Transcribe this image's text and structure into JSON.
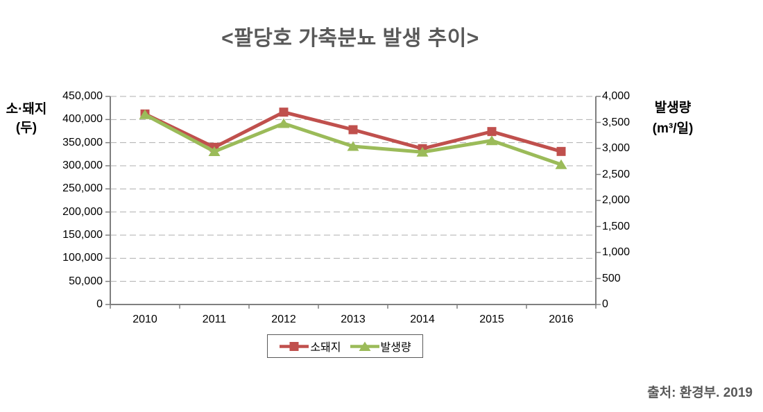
{
  "source": "출처: 환경부. 2019",
  "left_axis": {
    "title": [
      "소·돼지",
      "(두)"
    ],
    "ticks": [
      "450,000",
      "400,000",
      "350,000",
      "300,000",
      "250,000",
      "200,000",
      "150,000",
      "100,000",
      "50,000",
      "0"
    ]
  },
  "right_axis": {
    "title": [
      "발생량",
      "(m³/일)"
    ],
    "ticks": [
      "4,000",
      "3,500",
      "3,000",
      "2,500",
      "2,000",
      "1,500",
      "1,000",
      "500",
      "0"
    ]
  },
  "chart_data": {
    "type": "line",
    "title": "<팔당호  가축분뇨 발생 추이>",
    "categories": [
      "2010",
      "2011",
      "2012",
      "2013",
      "2014",
      "2015",
      "2016"
    ],
    "series": [
      {
        "name": "소돼지",
        "axis": "left",
        "color": "#C0504D",
        "marker": "square",
        "values": [
          412000,
          340000,
          416000,
          378000,
          337000,
          374000,
          331000
        ]
      },
      {
        "name": "발생량",
        "axis": "right",
        "color": "#9BBB59",
        "marker": "triangle",
        "values": [
          3650,
          2940,
          3480,
          3040,
          2930,
          3150,
          2690
        ]
      }
    ],
    "left_ylabel": "소·돼지 (두)",
    "right_ylabel": "발생량 (m³/일)",
    "left_ylim": [
      0,
      450000
    ],
    "left_step": 50000,
    "right_ylim": [
      0,
      4000
    ],
    "right_step": 500,
    "grid": "horizontal-dashed",
    "legend_position": "bottom",
    "axis_color": "#7F7F7F",
    "grid_color": "#AFAFAF",
    "title_color": "#595959"
  }
}
